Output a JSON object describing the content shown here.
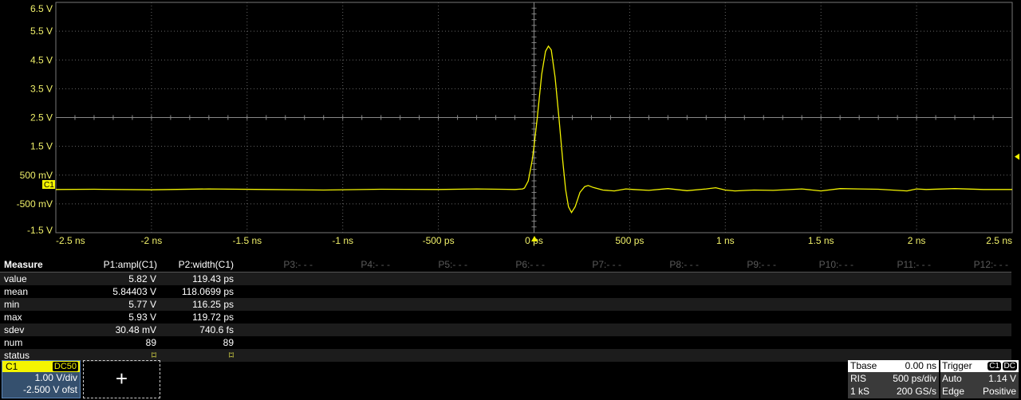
{
  "chart_data": {
    "type": "line",
    "title": "",
    "xlabel": "",
    "ylabel": "",
    "xlim": [
      -2500,
      2500
    ],
    "ylim": [
      -1.5,
      6.5
    ],
    "grid": true,
    "x_unit": "ps",
    "y_unit": "V",
    "x_tick_labels": [
      "-2.5 ns",
      "-2 ns",
      "-1.5 ns",
      "-1 ns",
      "-500 ps",
      "0 ps",
      "500 ps",
      "1 ns",
      "1.5 ns",
      "2 ns",
      "2.5 ns"
    ],
    "y_tick_labels": [
      "6.5 V",
      "5.5 V",
      "4.5 V",
      "3.5 V",
      "2.5 V",
      "1.5 V",
      "500 mV",
      "-500 mV",
      "-1.5 V"
    ],
    "trace_color": "#f4f400",
    "series": [
      {
        "x": [
          -2500,
          -2300,
          -2000,
          -1700,
          -1400,
          -1100,
          -800,
          -500,
          -300,
          -100,
          -60,
          -50,
          -30,
          -10,
          0,
          17,
          40,
          60,
          75,
          90,
          110,
          130,
          150,
          165,
          180,
          196,
          215,
          240,
          265,
          283,
          310,
          360,
          420,
          480,
          520,
          600,
          700,
          800,
          900,
          950,
          1000,
          1050,
          1150,
          1250,
          1400,
          1500,
          1600,
          1700,
          1800,
          1950,
          2000,
          2050,
          2200,
          2350,
          2500
        ],
        "y": [
          0,
          0.01,
          -0.01,
          0.02,
          0.0,
          -0.02,
          0.01,
          0.0,
          0.02,
          0.0,
          0.02,
          0.05,
          0.3,
          1.0,
          1.5,
          2.5,
          4.0,
          4.8,
          4.98,
          4.85,
          3.9,
          2.5,
          1.0,
          0.0,
          -0.6,
          -0.8,
          -0.6,
          -0.1,
          0.1,
          0.14,
          0.07,
          -0.02,
          -0.05,
          0.02,
          0.0,
          -0.03,
          0.03,
          -0.04,
          0.02,
          0.06,
          -0.02,
          -0.05,
          -0.02,
          -0.03,
          0.02,
          -0.05,
          0.03,
          0.02,
          0.01,
          -0.05,
          0.02,
          0.0,
          0.03,
          0.0,
          0.0
        ]
      }
    ],
    "channel_marker": "C1",
    "trigger_level_v": 1.14
  },
  "measure": {
    "title": "Measure",
    "params": [
      "P1:ampl(C1)",
      "P2:width(C1)",
      "P3:- - -",
      "P4:- - -",
      "P5:- - -",
      "P6:- - -",
      "P7:- - -",
      "P8:- - -",
      "P9:- - -",
      "P10:- - -",
      "P11:- - -",
      "P12:- - -"
    ],
    "rows": [
      {
        "label": "value",
        "p1": "5.82 V",
        "p2": "119.43 ps"
      },
      {
        "label": "mean",
        "p1": "5.84403 V",
        "p2": "118.0699 ps"
      },
      {
        "label": "min",
        "p1": "5.77 V",
        "p2": "116.25 ps"
      },
      {
        "label": "max",
        "p1": "5.93 V",
        "p2": "119.72 ps"
      },
      {
        "label": "sdev",
        "p1": "30.48 mV",
        "p2": "740.6 fs"
      },
      {
        "label": "num",
        "p1": "89",
        "p2": "89"
      },
      {
        "label": "status",
        "p1": "⌑",
        "p2": "⌑"
      }
    ]
  },
  "channel": {
    "name": "C1",
    "coupling": "DC50",
    "scale": "1.00 V/div",
    "offset": "-2.500 V ofst",
    "color": "#f4f400"
  },
  "add_button": "+",
  "timebase": {
    "title": "Tbase",
    "delay": "0.00 ns",
    "mode": "RIS",
    "scale": "500 ps/div",
    "samples": "1 kS",
    "rate": "200 GS/s"
  },
  "trigger": {
    "title": "Trigger",
    "source": "C1",
    "coupling": "DC",
    "mode": "Auto",
    "level": "1.14 V",
    "type": "Edge",
    "slope": "Positive"
  }
}
